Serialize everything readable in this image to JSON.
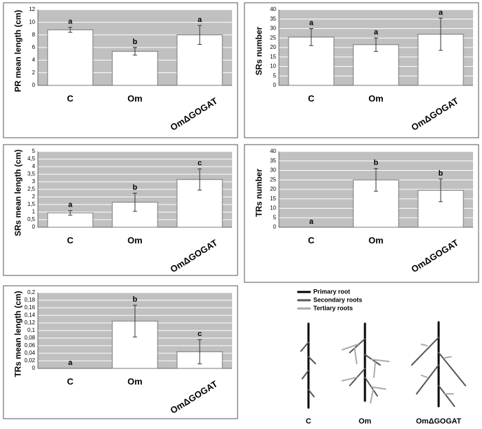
{
  "chart_data": [
    {
      "type": "bar",
      "y_label": "PR mean length (cm)",
      "categories": [
        "C",
        "Om",
        "OmΔGOGAT"
      ],
      "values": [
        8.8,
        5.4,
        8.0
      ],
      "errors": [
        0.4,
        0.6,
        1.5
      ],
      "letters": [
        "a",
        "b",
        "a"
      ],
      "ylim": [
        0,
        12
      ],
      "yticks": [
        0,
        2,
        4,
        6,
        8,
        10,
        12
      ],
      "grid": true,
      "color": "#ffffff"
    },
    {
      "type": "bar",
      "y_label": "SRs number",
      "categories": [
        "C",
        "Om",
        "OmΔGOGAT"
      ],
      "values": [
        25.5,
        21.5,
        27
      ],
      "errors": [
        4.5,
        3.5,
        8.5
      ],
      "letters": [
        "a",
        "a",
        "a"
      ],
      "ylim": [
        0,
        40
      ],
      "yticks": [
        0,
        5,
        10,
        15,
        20,
        25,
        30,
        35,
        40
      ],
      "grid": true,
      "color": "#ffffff"
    },
    {
      "type": "bar",
      "y_label": "SRs mean length (cm)",
      "categories": [
        "C",
        "Om",
        "OmΔGOGAT"
      ],
      "values": [
        0.95,
        1.65,
        3.15
      ],
      "errors": [
        0.15,
        0.6,
        0.7
      ],
      "letters": [
        "a",
        "b",
        "c"
      ],
      "ylim": [
        0,
        5
      ],
      "yticks": [
        0,
        {
          "value": 0.5,
          "label": "0,5"
        },
        1,
        {
          "value": 1.5,
          "label": "1,5"
        },
        2,
        {
          "value": 2.5,
          "label": "2,5"
        },
        3,
        {
          "value": 3.5,
          "label": "3,5"
        },
        4,
        {
          "value": 4.5,
          "label": "4,5"
        },
        5
      ],
      "grid": true,
      "color": "#ffffff"
    },
    {
      "type": "bar",
      "y_label": "TRs number",
      "categories": [
        "C",
        "Om",
        "OmΔGOGAT"
      ],
      "values": [
        0,
        25,
        19.5
      ],
      "errors": [
        null,
        6,
        6
      ],
      "letters": [
        "a",
        "b",
        "b"
      ],
      "ylim": [
        0,
        40
      ],
      "yticks": [
        0,
        5,
        10,
        15,
        20,
        25,
        30,
        35,
        40
      ],
      "grid": true,
      "color": "#ffffff"
    },
    {
      "type": "bar",
      "y_label": "TRs mean length (cm)",
      "categories": [
        "C",
        "Om",
        "OmΔGOGAT"
      ],
      "values": [
        0,
        0.125,
        0.044
      ],
      "errors": [
        null,
        0.042,
        0.032
      ],
      "letters": [
        "a",
        "b",
        "c"
      ],
      "ylim": [
        0,
        0.2
      ],
      "yticks": [
        0,
        {
          "value": 0.02,
          "label": "0,02"
        },
        {
          "value": 0.04,
          "label": "0,04"
        },
        {
          "value": 0.06,
          "label": "0,06"
        },
        {
          "value": 0.08,
          "label": "0,08"
        },
        {
          "value": 0.1,
          "label": "0,1"
        },
        {
          "value": 0.12,
          "label": "0,12"
        },
        {
          "value": 0.14,
          "label": "0,14"
        },
        {
          "value": 0.16,
          "label": "0,16"
        },
        {
          "value": 0.18,
          "label": "0,18"
        },
        {
          "value": 0.2,
          "label": "0,2"
        }
      ],
      "grid": true,
      "color": "#ffffff"
    }
  ],
  "diagram": {
    "legend": [
      "Primary root",
      "Secondary roots",
      "Tertiary roots"
    ],
    "labels": [
      "C",
      "Om",
      "OmΔGOGAT"
    ]
  }
}
